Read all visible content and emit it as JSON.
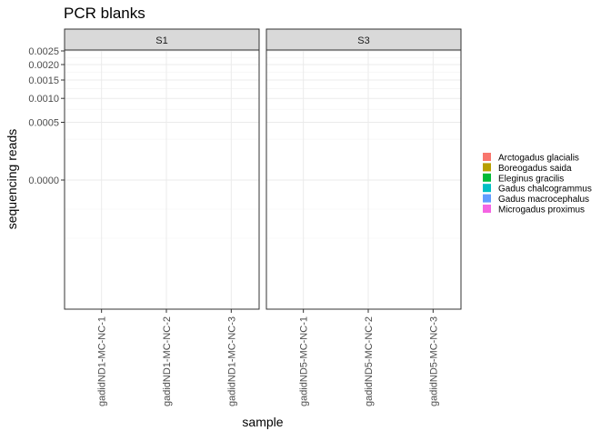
{
  "chart_data": {
    "type": "bar",
    "title": "PCR blanks",
    "xlabel": "sample",
    "ylabel": "sequencing reads",
    "y_scale": "sqrt",
    "y_ticks": [
      0.0,
      0.0005,
      0.001,
      0.0015,
      0.002,
      0.0025
    ],
    "y_tick_labels": [
      "0.0000",
      "0.0005",
      "0.0010",
      "0.0015",
      "0.0020",
      "0.0025"
    ],
    "grid": true,
    "legend_position": "right",
    "facets": [
      {
        "label": "S1",
        "categories": [
          "gadidND1-MC-NC-1",
          "gadidND1-MC-NC-2",
          "gadidND1-MC-NC-3"
        ]
      },
      {
        "label": "S3",
        "categories": [
          "gadidND5-MC-NC-1",
          "gadidND5-MC-NC-2",
          "gadidND5-MC-NC-3"
        ]
      }
    ],
    "series": [
      {
        "name": "Arctogadus glacialis",
        "color": "#F8766D",
        "values": [
          0,
          0,
          0,
          0,
          0,
          0
        ]
      },
      {
        "name": "Boreogadus saida",
        "color": "#B79F00",
        "values": [
          0,
          0,
          0,
          0,
          0,
          0
        ]
      },
      {
        "name": "Eleginus gracilis",
        "color": "#00BA38",
        "values": [
          0,
          0,
          0,
          0,
          0,
          0
        ]
      },
      {
        "name": "Gadus chalcogrammus",
        "color": "#00BFC4",
        "values": [
          0,
          0,
          0,
          0,
          0,
          0
        ]
      },
      {
        "name": "Gadus macrocephalus",
        "color": "#619CFF",
        "values": [
          0,
          0,
          0,
          0,
          0,
          0
        ]
      },
      {
        "name": "Microgadus proximus",
        "color": "#F564E3",
        "values": [
          0,
          0,
          0,
          0,
          0,
          0
        ]
      }
    ]
  }
}
